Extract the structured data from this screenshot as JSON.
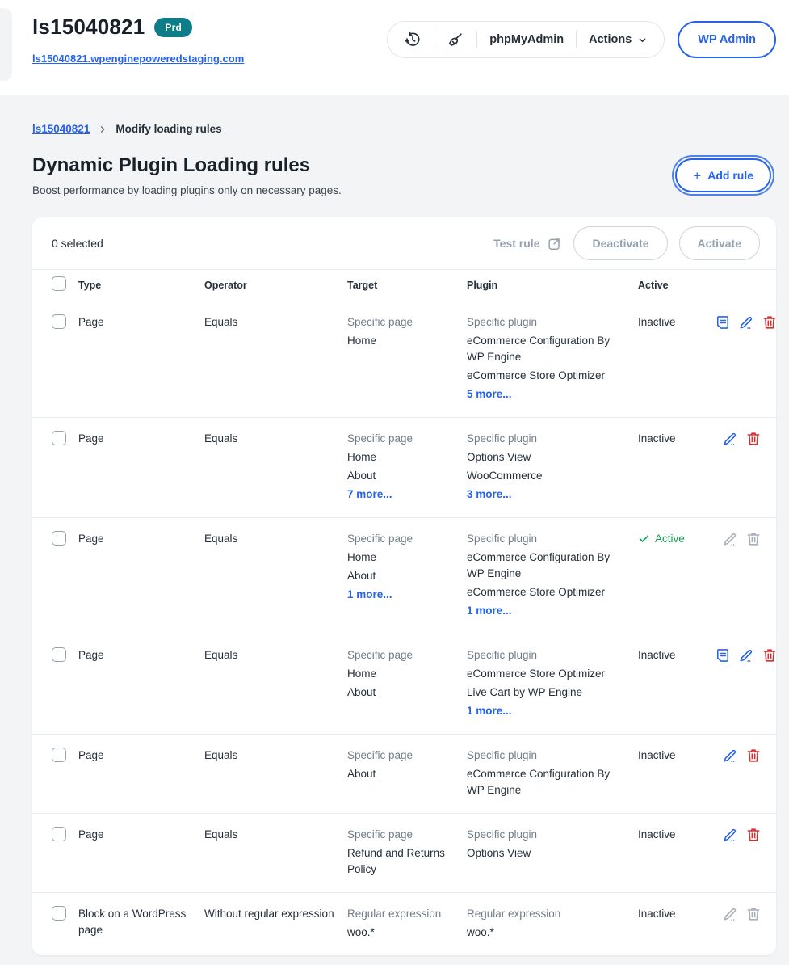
{
  "colors": {
    "accent": "#2563eb",
    "badge_teal": "#0d7d87",
    "danger": "#dd2c2c",
    "success": "#179a52"
  },
  "header": {
    "site_name": "ls15040821",
    "env_badge": "Prd",
    "site_url": "ls15040821.wpenginepoweredstaging.com",
    "toolbar": {
      "phpmyadmin_label": "phpMyAdmin",
      "actions_label": "Actions",
      "wp_admin_label": "WP Admin"
    }
  },
  "breadcrumb": {
    "root": "ls15040821",
    "current": "Modify loading rules"
  },
  "page": {
    "title": "Dynamic Plugin Loading rules",
    "subtitle": "Boost performance by loading plugins only on necessary pages.",
    "add_rule": {
      "icon": "+",
      "label": "Add rule"
    }
  },
  "list_toolbar": {
    "selected_text": "0 selected",
    "test_rule_label": "Test rule",
    "deactivate_label": "Deactivate",
    "activate_label": "Activate"
  },
  "table": {
    "columns": {
      "type": "Type",
      "operator": "Operator",
      "target": "Target",
      "plugin": "Plugin",
      "active": "Active"
    },
    "rows": [
      {
        "type": "Page",
        "operator": "Equals",
        "target": {
          "label": "Specific page",
          "items": [
            "Home"
          ],
          "more": ""
        },
        "plugin": {
          "label": "Specific plugin",
          "items": [
            "eCommerce Configuration By WP Engine",
            "eCommerce Store Optimizer"
          ],
          "more": "5 more..."
        },
        "status": {
          "text": "Inactive",
          "active": false
        },
        "actions": {
          "view": true,
          "edit": true,
          "delete": true,
          "enabled": true
        }
      },
      {
        "type": "Page",
        "operator": "Equals",
        "target": {
          "label": "Specific page",
          "items": [
            "Home",
            "About"
          ],
          "more": "7 more..."
        },
        "plugin": {
          "label": "Specific plugin",
          "items": [
            "Options View",
            "WooCommerce"
          ],
          "more": "3 more..."
        },
        "status": {
          "text": "Inactive",
          "active": false
        },
        "actions": {
          "view": false,
          "edit": true,
          "delete": true,
          "enabled": true
        }
      },
      {
        "type": "Page",
        "operator": "Equals",
        "target": {
          "label": "Specific page",
          "items": [
            "Home",
            "About"
          ],
          "more": "1 more..."
        },
        "plugin": {
          "label": "Specific plugin",
          "items": [
            "eCommerce Configuration By WP Engine",
            "eCommerce Store Optimizer"
          ],
          "more": "1 more..."
        },
        "status": {
          "text": "Active",
          "active": true
        },
        "actions": {
          "view": false,
          "edit": true,
          "delete": true,
          "enabled": false
        }
      },
      {
        "type": "Page",
        "operator": "Equals",
        "target": {
          "label": "Specific page",
          "items": [
            "Home",
            "About"
          ],
          "more": ""
        },
        "plugin": {
          "label": "Specific plugin",
          "items": [
            "eCommerce Store Optimizer",
            "Live Cart by WP Engine"
          ],
          "more": "1 more..."
        },
        "status": {
          "text": "Inactive",
          "active": false
        },
        "actions": {
          "view": true,
          "edit": true,
          "delete": true,
          "enabled": true
        }
      },
      {
        "type": "Page",
        "operator": "Equals",
        "target": {
          "label": "Specific page",
          "items": [
            "About"
          ],
          "more": ""
        },
        "plugin": {
          "label": "Specific plugin",
          "items": [
            "eCommerce Configuration By WP Engine"
          ],
          "more": ""
        },
        "status": {
          "text": "Inactive",
          "active": false
        },
        "actions": {
          "view": false,
          "edit": true,
          "delete": true,
          "enabled": true
        }
      },
      {
        "type": "Page",
        "operator": "Equals",
        "target": {
          "label": "Specific page",
          "items": [
            "Refund and Returns Policy"
          ],
          "more": ""
        },
        "plugin": {
          "label": "Specific plugin",
          "items": [
            "Options View"
          ],
          "more": ""
        },
        "status": {
          "text": "Inactive",
          "active": false
        },
        "actions": {
          "view": false,
          "edit": true,
          "delete": true,
          "enabled": true
        }
      },
      {
        "type": "Block on a WordPress page",
        "operator": "Without regular expression",
        "target": {
          "label": "Regular expression",
          "items": [
            "woo.*"
          ],
          "more": ""
        },
        "plugin": {
          "label": "Regular expression",
          "items": [
            "woo.*"
          ],
          "more": ""
        },
        "status": {
          "text": "Inactive",
          "active": false
        },
        "actions": {
          "view": false,
          "edit": true,
          "delete": true,
          "enabled": false
        }
      }
    ]
  }
}
